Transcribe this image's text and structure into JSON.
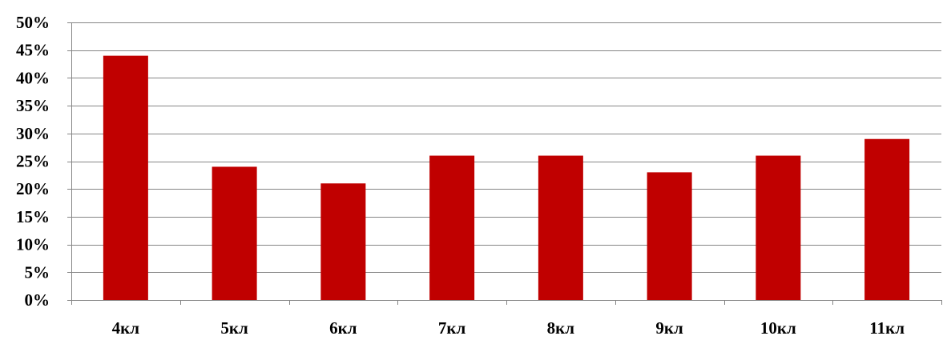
{
  "chart_data": {
    "type": "bar",
    "title": "",
    "xlabel": "",
    "ylabel": "",
    "categories": [
      "4кл",
      "5кл",
      "6кл",
      "7кл",
      "8кл",
      "9кл",
      "10кл",
      "11кл"
    ],
    "values": [
      44,
      24,
      21,
      26,
      26,
      23,
      26,
      29
    ],
    "value_format": "percent",
    "ylim": [
      0,
      50
    ],
    "yticks": [
      0,
      5,
      10,
      15,
      20,
      25,
      30,
      35,
      40,
      45,
      50
    ],
    "ytick_labels": [
      "0%",
      "5%",
      "10%",
      "15%",
      "20%",
      "25%",
      "30%",
      "35%",
      "40%",
      "45%",
      "50%"
    ],
    "grid": true,
    "legend": "none",
    "bar_color": "#C00000",
    "grid_color": "#868686"
  }
}
